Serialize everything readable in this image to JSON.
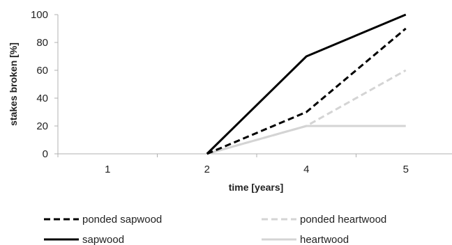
{
  "chart_data": {
    "type": "line",
    "xlabel": "time [years]",
    "ylabel": "stakes broken [%]",
    "categories": [
      "1",
      "2",
      "4",
      "5"
    ],
    "ylim": [
      0,
      100
    ],
    "yticks": [
      0,
      20,
      40,
      60,
      80,
      100
    ],
    "grid": false,
    "legend_position": "bottom",
    "series": [
      {
        "name": "ponded sapwood",
        "values": [
          0,
          0,
          30,
          90
        ],
        "color": "#000000",
        "style": "dashed"
      },
      {
        "name": "ponded heartwood",
        "values": [
          0,
          0,
          20,
          60
        ],
        "color": "#d4d4d4",
        "style": "dashed"
      },
      {
        "name": "sapwood",
        "values": [
          0,
          0,
          70,
          100
        ],
        "color": "#000000",
        "style": "solid"
      },
      {
        "name": "heartwood",
        "values": [
          0,
          0,
          20,
          20
        ],
        "color": "#d4d4d4",
        "style": "solid"
      }
    ]
  }
}
